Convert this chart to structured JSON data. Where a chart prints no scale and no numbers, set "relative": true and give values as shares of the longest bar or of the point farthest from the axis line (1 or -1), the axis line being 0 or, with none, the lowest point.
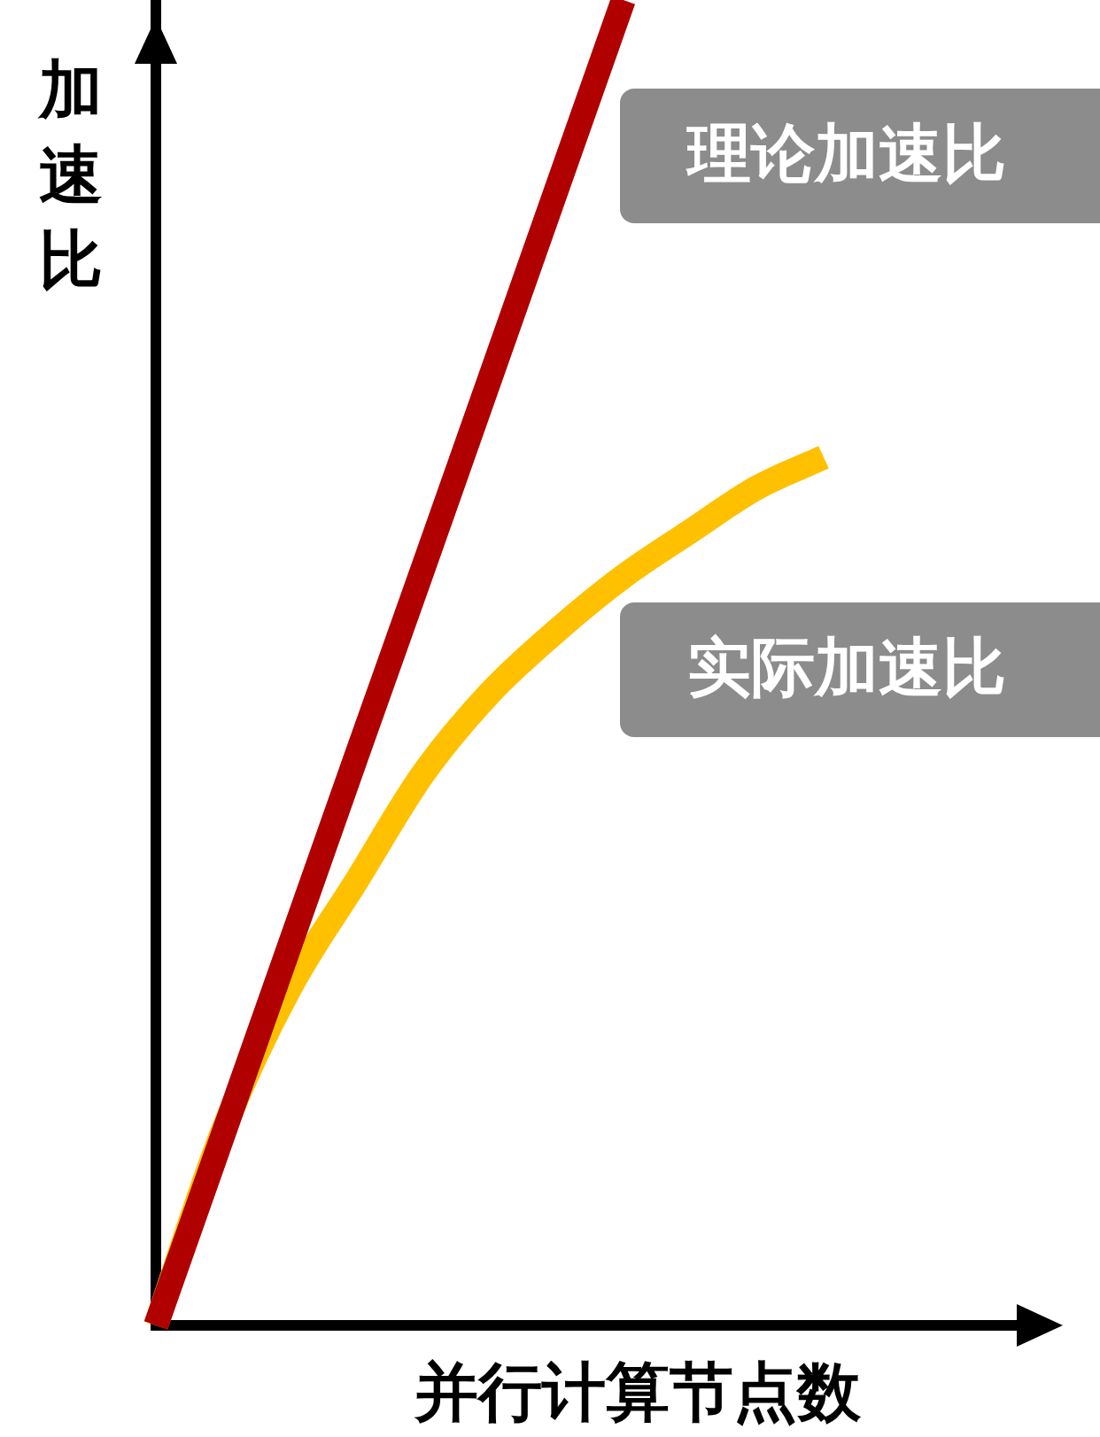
{
  "chart_data": {
    "type": "line",
    "relative": true,
    "xlabel": "并行计算节点数",
    "ylabel": "加速比",
    "categories": [
      null,
      null,
      null,
      null,
      null,
      null,
      null,
      null,
      null,
      null,
      null
    ],
    "legend": false,
    "grid": false,
    "marker": "none",
    "line_style": "solid",
    "series": [
      {
        "name": "理论加速比",
        "color": "#b00000",
        "values": [
          0,
          0.143,
          0.286,
          0.429,
          0.571,
          0.714,
          0.857,
          1,
          null,
          null,
          null
        ]
      },
      {
        "name": "实际加速比",
        "color": "#ffc000",
        "values": [
          0,
          0.146,
          0.254,
          0.335,
          0.416,
          0.477,
          0.524,
          0.565,
          0.599,
          0.632,
          0.655
        ]
      }
    ]
  }
}
